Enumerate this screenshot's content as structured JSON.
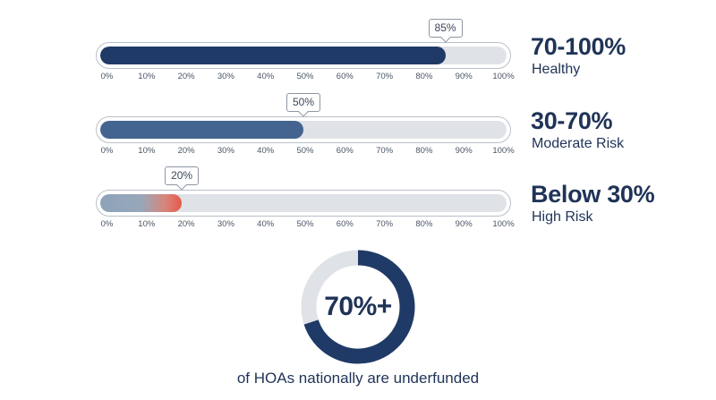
{
  "chart_data": [
    {
      "type": "bar",
      "orientation": "horizontal",
      "axis": {
        "min": 0,
        "max": 100,
        "unit": "%",
        "tick_labels": [
          "0%",
          "10%",
          "20%",
          "30%",
          "40%",
          "50%",
          "60%",
          "70%",
          "80%",
          "90%",
          "100%"
        ]
      },
      "bars": [
        {
          "value": 85,
          "value_label": "85%",
          "range_label": "70-100%",
          "status_label": "Healthy",
          "color": "#1f3a66"
        },
        {
          "value": 50,
          "value_label": "50%",
          "range_label": "30-70%",
          "status_label": "Moderate Risk",
          "color": "#43648f"
        },
        {
          "value": 20,
          "value_label": "20%",
          "range_label": "Below 30%",
          "status_label": "High Risk",
          "color": "#e6584b"
        }
      ]
    },
    {
      "type": "pie",
      "style": "donut",
      "value": 70,
      "center_label": "70%+",
      "caption": "of HOAs nationally are underfunded",
      "colors": {
        "filled": "#1f3a66",
        "remainder": "#dfe2e7"
      }
    }
  ]
}
